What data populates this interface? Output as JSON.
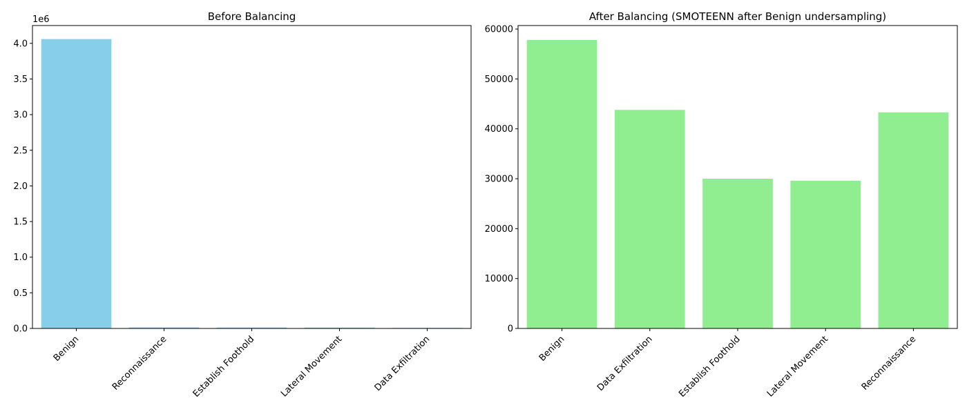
{
  "chart_data": [
    {
      "type": "bar",
      "title": "Before Balancing",
      "categories": [
        "Benign",
        "Reconnaissance",
        "Establish Foothold",
        "Lateral Movement",
        "Data Exfiltration"
      ],
      "values": [
        4060000,
        14000,
        13000,
        12000,
        8000
      ],
      "ylim": [
        0,
        4250000
      ],
      "yticks": [
        0,
        500000,
        1000000,
        1500000,
        2000000,
        2500000,
        3000000,
        3500000,
        4000000
      ],
      "ytick_labels": [
        "0.0",
        "0.5",
        "1.0",
        "1.5",
        "2.0",
        "2.5",
        "3.0",
        "3.5",
        "4.0"
      ],
      "offset_label": "1e6",
      "color": "#87ceeb",
      "grid": false
    },
    {
      "type": "bar",
      "title": "After Balancing (SMOTEENN after Benign undersampling)",
      "categories": [
        "Benign",
        "Data Exfiltration",
        "Establish Foothold",
        "Lateral Movement",
        "Reconnaissance"
      ],
      "values": [
        57800,
        43800,
        30000,
        29600,
        43300
      ],
      "ylim": [
        0,
        60700
      ],
      "yticks": [
        0,
        10000,
        20000,
        30000,
        40000,
        50000,
        60000
      ],
      "ytick_labels": [
        "0",
        "10000",
        "20000",
        "30000",
        "40000",
        "50000",
        "60000"
      ],
      "offset_label": "",
      "color": "#90ee90",
      "grid": false
    }
  ]
}
